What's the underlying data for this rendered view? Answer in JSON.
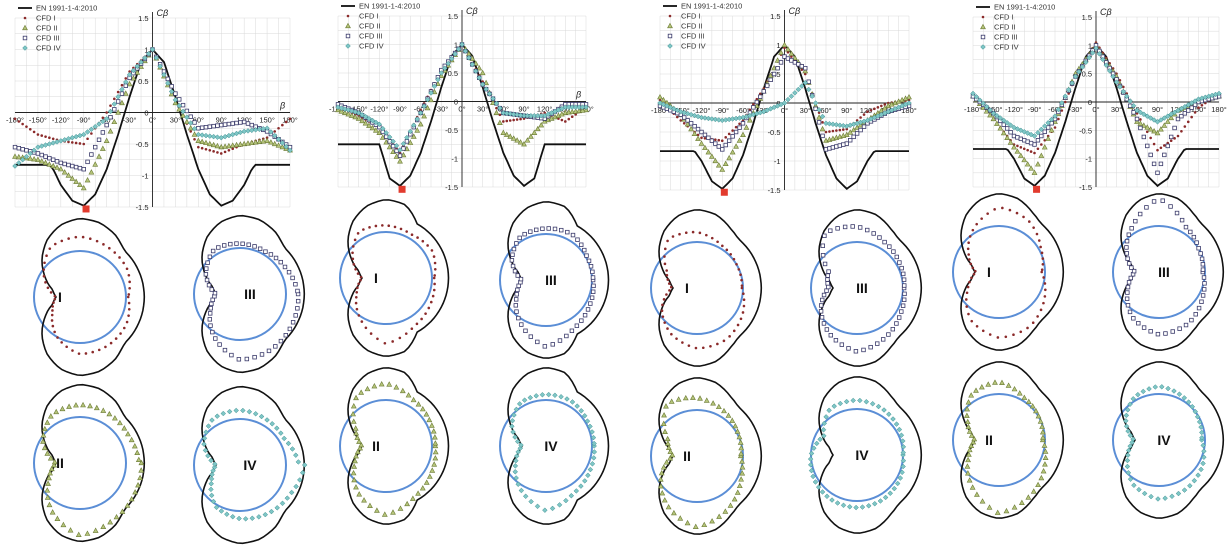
{
  "chart_data": [
    {
      "type": "line",
      "panel": 1,
      "ylabel": "Cβ",
      "xlabel": "β",
      "ylim": [
        -1.5,
        1.5
      ],
      "xlim": [
        -180,
        180
      ],
      "yticks": [
        "1.5",
        "1",
        "0.5",
        "0",
        "-0.5",
        "-1",
        "-1.5"
      ],
      "xticks": [
        "-180°",
        "-150°",
        "-120°",
        "-90°",
        "-60°",
        "-30°",
        "0°",
        "30°",
        "60°",
        "90°",
        "120°",
        "150°",
        "180°"
      ],
      "grid": true,
      "legend": "top-left",
      "series": [
        {
          "name": "EN 1991-1-4:2010",
          "marker": "line",
          "x": [
            -180,
            -135,
            -130,
            -120,
            -105,
            -90,
            -75,
            -60,
            -45,
            -30,
            -15,
            0,
            15,
            30,
            45,
            60,
            75,
            90,
            105,
            120,
            130,
            135,
            180
          ],
          "values": [
            -0.83,
            -0.83,
            -0.9,
            -1.15,
            -1.4,
            -1.48,
            -1.3,
            -0.9,
            -0.35,
            0.25,
            0.8,
            1.0,
            0.8,
            0.25,
            -0.35,
            -0.9,
            -1.3,
            -1.48,
            -1.4,
            -1.15,
            -0.9,
            -0.83,
            -0.83
          ]
        },
        {
          "name": "CFD I",
          "marker": "dot",
          "x": [
            -180,
            -150,
            -120,
            -90,
            -60,
            -30,
            0,
            30,
            60,
            90,
            120,
            150,
            180
          ],
          "values": [
            -0.1,
            -0.35,
            -0.45,
            -0.5,
            0.0,
            0.65,
            1.0,
            0.2,
            -0.55,
            -0.65,
            -0.5,
            -0.4,
            -0.1
          ]
        },
        {
          "name": "CFD II",
          "marker": "triangle",
          "x": [
            -180,
            -150,
            -120,
            -90,
            -60,
            -30,
            0,
            30,
            60,
            90,
            120,
            150,
            180
          ],
          "values": [
            -0.7,
            -0.75,
            -0.9,
            -1.2,
            -0.45,
            0.45,
            1.0,
            0.15,
            -0.45,
            -0.55,
            -0.5,
            -0.45,
            -0.6
          ]
        },
        {
          "name": "CFD III",
          "marker": "square",
          "x": [
            -180,
            -150,
            -120,
            -90,
            -60,
            -30,
            0,
            30,
            60,
            90,
            120,
            150,
            180
          ],
          "values": [
            -0.55,
            -0.65,
            -0.8,
            -0.9,
            -0.2,
            0.55,
            1.0,
            0.3,
            -0.25,
            -0.2,
            -0.15,
            -0.3,
            -0.55
          ]
        },
        {
          "name": "CFD IV",
          "marker": "diamond",
          "x": [
            -180,
            -150,
            -120,
            -90,
            -60,
            -30,
            0,
            30,
            60,
            90,
            120,
            150,
            180
          ],
          "values": [
            -0.85,
            -0.55,
            -0.45,
            -0.35,
            -0.1,
            0.6,
            1.0,
            0.2,
            -0.35,
            -0.4,
            -0.3,
            -0.25,
            -0.6
          ]
        }
      ]
    },
    {
      "type": "line",
      "panel": 2,
      "ylabel": "Cβ",
      "xlabel": "β",
      "ylim": [
        -1.5,
        1.5
      ],
      "xlim": [
        -180,
        180
      ],
      "yticks": [
        "1.5",
        "1",
        "0.5",
        "0",
        "-0.5",
        "-1",
        "-1.5"
      ],
      "xticks": [
        "-180°",
        "-150°",
        "-120°",
        "-90°",
        "-60°",
        "-30°",
        "0°",
        "30°",
        "60°",
        "90°",
        "120°",
        "150°",
        "180°"
      ],
      "grid": true,
      "legend": "top-left",
      "series": [
        {
          "name": "EN 1991-1-4:2010",
          "marker": "line",
          "x": [
            -180,
            -120,
            -115,
            -105,
            -90,
            -75,
            -60,
            -45,
            -30,
            -15,
            0,
            15,
            30,
            45,
            60,
            75,
            90,
            105,
            115,
            120,
            180
          ],
          "values": [
            -0.75,
            -0.75,
            -0.95,
            -1.35,
            -1.48,
            -1.3,
            -0.9,
            -0.35,
            0.25,
            0.8,
            1.0,
            0.8,
            0.25,
            -0.35,
            -0.9,
            -1.3,
            -1.48,
            -1.35,
            -0.95,
            -0.75,
            -0.75
          ]
        },
        {
          "name": "CFD I",
          "marker": "dot",
          "x": [
            -180,
            -150,
            -120,
            -90,
            -60,
            -30,
            0,
            30,
            60,
            90,
            120,
            150,
            180
          ],
          "values": [
            -0.1,
            -0.25,
            -0.45,
            -0.9,
            -0.15,
            0.55,
            1.0,
            0.35,
            -0.35,
            -0.3,
            -0.2,
            -0.35,
            -0.1
          ]
        },
        {
          "name": "CFD II",
          "marker": "triangle",
          "x": [
            -180,
            -150,
            -120,
            -90,
            -60,
            -30,
            0,
            30,
            60,
            90,
            120,
            150,
            180
          ],
          "values": [
            -0.15,
            -0.3,
            -0.55,
            -1.05,
            -0.4,
            0.45,
            1.0,
            0.5,
            -0.55,
            -0.75,
            -0.35,
            -0.2,
            -0.15
          ]
        },
        {
          "name": "CFD III",
          "marker": "square",
          "x": [
            -180,
            -150,
            -120,
            -90,
            -60,
            -30,
            0,
            30,
            60,
            90,
            120,
            150,
            180
          ],
          "values": [
            -0.05,
            -0.2,
            -0.45,
            -0.95,
            -0.2,
            0.55,
            1.0,
            0.3,
            -0.2,
            -0.25,
            -0.3,
            -0.05,
            -0.05
          ]
        },
        {
          "name": "CFD IV",
          "marker": "diamond",
          "x": [
            -180,
            -150,
            -120,
            -90,
            -60,
            -30,
            0,
            30,
            60,
            90,
            120,
            150,
            180
          ],
          "values": [
            -0.1,
            -0.2,
            -0.4,
            -0.85,
            -0.2,
            0.5,
            1.0,
            0.3,
            -0.2,
            -0.25,
            -0.25,
            -0.1,
            -0.1
          ]
        }
      ]
    },
    {
      "type": "line",
      "panel": 3,
      "ylabel": "Cβ",
      "ylim": [
        -1.5,
        1.5
      ],
      "xlim": [
        -180,
        180
      ],
      "yticks": [
        "1.5",
        "1",
        "0.5",
        "0",
        "-0.5",
        "-1",
        "-1.5"
      ],
      "xticks": [
        "-180°",
        "-150°",
        "-120°",
        "-90°",
        "-60°",
        "-30°",
        "0°",
        "30°",
        "60°",
        "90°",
        "120°",
        "150°",
        "180°"
      ],
      "grid": true,
      "legend": "top-left",
      "series": [
        {
          "name": "EN 1991-1-4:2010",
          "marker": "line",
          "x": [
            -180,
            -130,
            -120,
            -105,
            -90,
            -75,
            -60,
            -45,
            -30,
            -15,
            0,
            15,
            30,
            45,
            60,
            75,
            90,
            105,
            120,
            130,
            180
          ],
          "values": [
            -0.83,
            -0.83,
            -1.0,
            -1.35,
            -1.48,
            -1.3,
            -0.9,
            -0.35,
            0.25,
            0.8,
            1.0,
            0.8,
            0.25,
            -0.35,
            -0.9,
            -1.3,
            -1.48,
            -1.35,
            -1.0,
            -0.83,
            -0.83
          ]
        },
        {
          "name": "CFD I",
          "marker": "dot",
          "x": [
            -180,
            -150,
            -120,
            -90,
            -60,
            -30,
            0,
            30,
            60,
            90,
            120,
            150,
            180
          ],
          "values": [
            0.05,
            -0.3,
            -0.6,
            -0.65,
            -0.3,
            0.25,
            0.95,
            0.5,
            -0.5,
            -0.45,
            -0.15,
            0.0,
            0.05
          ]
        },
        {
          "name": "CFD II",
          "marker": "triangle",
          "x": [
            -180,
            -150,
            -120,
            -90,
            -60,
            -30,
            0,
            30,
            60,
            90,
            120,
            150,
            180
          ],
          "values": [
            0.1,
            -0.2,
            -0.7,
            -1.15,
            -0.55,
            0.2,
            1.0,
            0.55,
            -0.65,
            -0.55,
            -0.3,
            -0.05,
            0.1
          ]
        },
        {
          "name": "CFD III",
          "marker": "square",
          "x": [
            -180,
            -150,
            -120,
            -90,
            -60,
            -30,
            0,
            30,
            60,
            90,
            120,
            150,
            180
          ],
          "values": [
            -0.05,
            -0.2,
            -0.5,
            -0.8,
            -0.35,
            0.2,
            0.8,
            0.6,
            -0.8,
            -0.7,
            -0.35,
            -0.15,
            -0.05
          ]
        },
        {
          "name": "CFD IV",
          "marker": "diamond",
          "x": [
            -180,
            -150,
            -120,
            -90,
            -60,
            -30,
            0,
            30,
            60,
            90,
            120,
            150,
            180
          ],
          "values": [
            0.0,
            -0.15,
            -0.25,
            -0.3,
            -0.25,
            -0.15,
            0.0,
            0.35,
            -0.35,
            -0.4,
            -0.3,
            -0.15,
            0.0
          ]
        }
      ]
    },
    {
      "type": "line",
      "panel": 4,
      "ylabel": "Cβ",
      "ylim": [
        -1.5,
        1.5
      ],
      "xlim": [
        -180,
        180
      ],
      "yticks": [
        "1.5",
        "1",
        "0.5",
        "0",
        "-0.5",
        "-1",
        "-1.5"
      ],
      "xticks": [
        "-180°",
        "-150°",
        "-120°",
        "-90°",
        "-60°",
        "-30°",
        "0°",
        "30°",
        "60°",
        "90°",
        "120°",
        "150°",
        "180°"
      ],
      "grid": true,
      "legend": "top-left",
      "series": [
        {
          "name": "EN 1991-1-4:2010",
          "marker": "line",
          "x": [
            -180,
            -130,
            -120,
            -105,
            -90,
            -75,
            -60,
            -45,
            -30,
            -15,
            0,
            15,
            30,
            45,
            60,
            75,
            90,
            105,
            120,
            130,
            180
          ],
          "values": [
            -0.83,
            -0.83,
            -1.0,
            -1.35,
            -1.48,
            -1.3,
            -0.9,
            -0.35,
            0.25,
            0.8,
            1.0,
            0.8,
            0.25,
            -0.35,
            -0.9,
            -1.3,
            -1.48,
            -1.35,
            -1.0,
            -0.83,
            -0.83
          ]
        },
        {
          "name": "CFD I",
          "marker": "dot",
          "x": [
            -180,
            -150,
            -120,
            -90,
            -60,
            -30,
            0,
            30,
            60,
            90,
            120,
            150,
            180
          ],
          "values": [
            0.15,
            -0.3,
            -0.75,
            -0.9,
            -0.45,
            0.45,
            1.05,
            0.5,
            -0.2,
            -0.85,
            -0.6,
            -0.1,
            0.15
          ]
        },
        {
          "name": "CFD II",
          "marker": "triangle",
          "x": [
            -180,
            -150,
            -120,
            -90,
            -60,
            -30,
            0,
            30,
            60,
            90,
            120,
            150,
            180
          ],
          "values": [
            0.1,
            -0.3,
            -0.8,
            -1.25,
            -0.35,
            0.5,
            1.0,
            0.45,
            -0.35,
            -0.55,
            -0.15,
            0.0,
            0.1
          ]
        },
        {
          "name": "CFD III",
          "marker": "square",
          "x": [
            -180,
            -150,
            -120,
            -90,
            -60,
            -30,
            0,
            30,
            60,
            90,
            120,
            150,
            180
          ],
          "values": [
            0.1,
            -0.2,
            -0.6,
            -0.75,
            -0.3,
            0.45,
            1.0,
            0.4,
            -0.3,
            -1.25,
            -0.3,
            0.0,
            0.1
          ]
        },
        {
          "name": "CFD IV",
          "marker": "diamond",
          "x": [
            -180,
            -150,
            -120,
            -90,
            -60,
            -30,
            0,
            30,
            60,
            90,
            120,
            150,
            180
          ],
          "values": [
            0.15,
            -0.2,
            -0.45,
            -0.6,
            -0.25,
            0.45,
            0.95,
            0.35,
            -0.15,
            -0.35,
            -0.15,
            0.05,
            0.15
          ]
        }
      ]
    }
  ],
  "polar_labels": [
    "I",
    "III",
    "II",
    "IV"
  ],
  "colors": {
    "eurocode": "#111111",
    "circle": "#5b8ed6",
    "grid": "#d9d9d9",
    "cfd1": "#8b2a2a",
    "cfd2": "#6b7a35",
    "cfd3": "#3a3a6a",
    "cfd4": "#3b8e8e",
    "critical": "#e23b2e"
  }
}
